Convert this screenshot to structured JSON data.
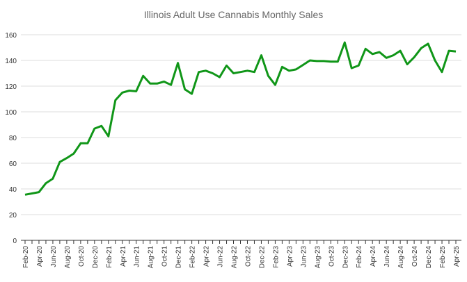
{
  "chart_data": {
    "type": "line",
    "title": "Illinois Adult Use Cannabis Monthly Sales",
    "xlabel": "",
    "ylabel": "",
    "ylim": [
      0,
      160
    ],
    "yticks": [
      0,
      20,
      40,
      60,
      80,
      100,
      120,
      140,
      160
    ],
    "grid": true,
    "line_color": "#109618",
    "x": [
      "Feb-20",
      "Mar-20",
      "Apr-20",
      "May-20",
      "Jun-20",
      "Jul-20",
      "Aug-20",
      "Sep-20",
      "Oct-20",
      "Nov-20",
      "Dec-20",
      "Jan-21",
      "Feb-21",
      "Mar-21",
      "Apr-21",
      "May-21",
      "Jun-21",
      "Jul-21",
      "Aug-21",
      "Sep-21",
      "Oct-21",
      "Nov-21",
      "Dec-21",
      "Jan-22",
      "Feb-22",
      "Mar-22",
      "Apr-22",
      "May-22",
      "Jun-22",
      "Jul-22",
      "Aug-22",
      "Sep-22",
      "Oct-22",
      "Nov-22",
      "Dec-22",
      "Jan-23",
      "Feb-23",
      "Mar-23",
      "Apr-23",
      "May-23",
      "Jun-23",
      "Jul-23",
      "Aug-23",
      "Sep-23",
      "Oct-23",
      "Nov-23",
      "Dec-23",
      "Jan-24",
      "Feb-24",
      "Mar-24",
      "Apr-24",
      "May-24",
      "Jun-24",
      "Jul-24",
      "Aug-24",
      "Sep-24",
      "Oct-24",
      "Nov-24",
      "Dec-24",
      "Jan-25",
      "Feb-25",
      "Mar-25",
      "Apr-25"
    ],
    "series": [
      {
        "name": "Monthly Sales",
        "values": [
          35.5,
          36.5,
          37.5,
          44.5,
          48,
          61,
          64,
          67.5,
          75.5,
          75.5,
          87,
          89,
          81,
          109,
          115,
          116.5,
          116,
          128,
          122,
          122,
          123.5,
          121,
          138,
          117.5,
          114,
          131,
          132,
          130,
          127,
          136,
          130,
          131,
          132,
          131,
          144,
          128,
          121,
          135,
          132,
          133,
          136.5,
          140,
          139.5,
          139.5,
          139,
          139,
          154,
          134,
          136,
          149,
          145,
          146.5,
          142,
          144,
          147.5,
          137,
          142.5,
          149.5,
          153,
          140,
          131,
          147.5,
          147
        ]
      }
    ],
    "label_every": 2
  }
}
